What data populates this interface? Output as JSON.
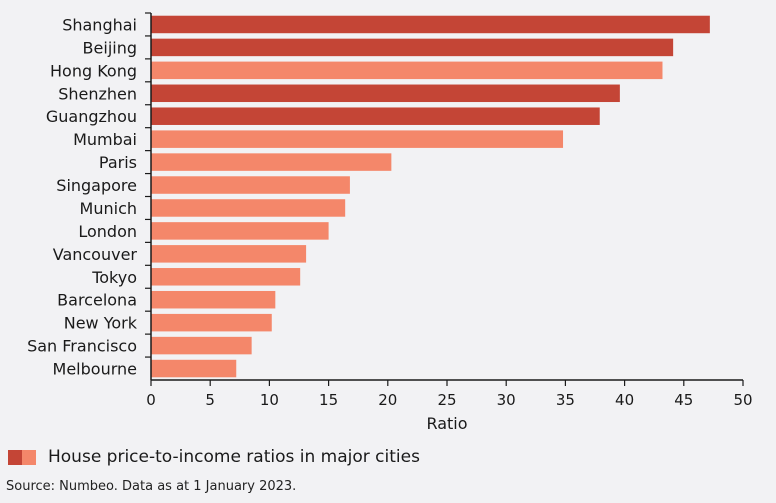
{
  "chart_data": {
    "type": "bar",
    "orientation": "horizontal",
    "categories": [
      "Shanghai",
      "Beijing",
      "Hong Kong",
      "Shenzhen",
      "Guangzhou",
      "Mumbai",
      "Paris",
      "Singapore",
      "Munich",
      "London",
      "Vancouver",
      "Tokyo",
      "Barcelona",
      "New York",
      "San Francisco",
      "Melbourne"
    ],
    "values": [
      47.2,
      44.1,
      43.2,
      39.6,
      37.9,
      34.8,
      20.3,
      16.8,
      16.4,
      15.0,
      13.1,
      12.6,
      10.5,
      10.2,
      8.5,
      7.2
    ],
    "highlight": [
      true,
      true,
      false,
      true,
      true,
      false,
      false,
      false,
      false,
      false,
      false,
      false,
      false,
      false,
      false,
      false
    ],
    "xlabel": "Ratio",
    "ylabel": "",
    "xlim": [
      0,
      50
    ],
    "xticks": [
      0,
      5,
      10,
      15,
      20,
      25,
      30,
      35,
      40,
      45,
      50
    ],
    "grid": false
  },
  "colors": {
    "highlight": "#c44536",
    "normal": "#f4876a",
    "axis": "#1a1a1a"
  },
  "legend": {
    "label": "House price-to-income ratios in major cities"
  },
  "source": "Source: Numbeo. Data as at 1 January 2023."
}
